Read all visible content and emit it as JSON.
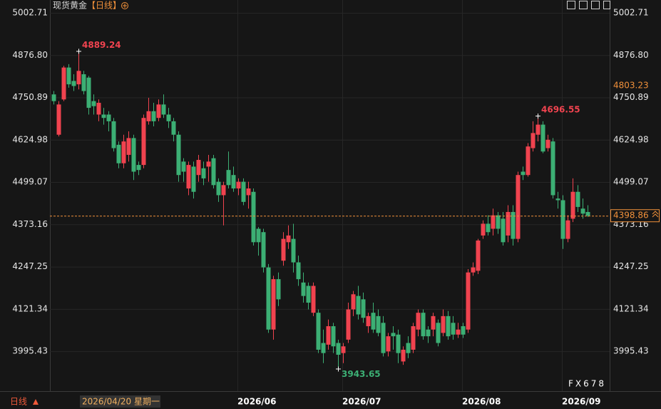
{
  "chart_data": {
    "type": "candlestick",
    "title": "现货黄金",
    "title_tag": "【日线】",
    "interval": "日线",
    "crosshair_label": "2026/04/20 星期一",
    "watermark": "FX678",
    "reference_price": 4803.23,
    "up_color": "#f0434f",
    "down_color": "#3caf74",
    "ylim": [
      3883,
      5041
    ],
    "yticks": [
      5002.71,
      {
        "value": 4876.8,
        "label": "4876.80"
      },
      4750.89,
      4624.98,
      4499.07,
      4373.16,
      4247.25,
      4121.34,
      3995.43
    ],
    "grid": true,
    "categories": [
      null,
      null,
      null,
      null,
      null,
      null,
      null,
      null,
      null,
      null,
      null,
      null,
      null,
      null,
      null,
      null,
      null,
      null,
      null,
      null,
      null,
      null,
      null,
      null,
      null,
      null,
      null,
      null,
      null,
      null,
      null,
      null,
      null,
      null,
      null,
      null,
      null,
      null,
      null,
      null,
      "2026/06",
      null,
      null,
      null,
      null,
      null,
      null,
      null,
      null,
      null,
      null,
      null,
      null,
      null,
      null,
      null,
      null,
      null,
      null,
      null,
      null,
      "2026/07",
      null,
      null,
      null,
      null,
      null,
      null,
      null,
      null,
      null,
      null,
      null,
      null,
      null,
      null,
      null,
      null,
      null,
      null,
      null,
      null,
      null,
      null,
      null,
      "2026/08",
      null,
      null,
      null,
      null,
      null,
      null,
      null,
      null,
      null,
      null,
      null,
      null,
      null,
      null,
      null,
      null,
      null,
      null,
      null,
      "2026/09",
      null,
      null
    ],
    "open": [
      4760,
      4640,
      4745,
      4840,
      4800,
      4790,
      4820,
      4810,
      4740,
      4700,
      4700,
      4700,
      4680,
      4610,
      4555,
      4580,
      4630,
      4550,
      4550,
      4680,
      4710,
      4690,
      4730,
      4700,
      4680,
      4640,
      4560,
      4480,
      4545,
      4520,
      4540,
      4545,
      4570,
      4500,
      4460,
      4535,
      4520,
      4480,
      4500,
      4460,
      4470,
      4360,
      4350,
      4245,
      4060,
      4210,
      4265,
      4320,
      4330,
      4260,
      4200,
      4190,
      4110,
      4110,
      4020,
      4015,
      4070,
      4020,
      3990,
      4030,
      4120,
      4160,
      4150,
      4070,
      4110,
      4100,
      4080,
      3995,
      4050,
      4045,
      3965,
      4020,
      4000,
      4060,
      4110,
      4060,
      4060,
      4080,
      4050,
      4100,
      4080,
      4045,
      4070,
      4060,
      4230,
      4235,
      4340,
      4375,
      4360,
      4400,
      4390,
      4340,
      4410,
      4330,
      4530,
      4520,
      4600,
      4640,
      4670,
      4600,
      4620,
      4450,
      4445,
      4330,
      4390,
      4470,
      4420,
      4410
    ],
    "close": [
      4740,
      4730,
      4840,
      4790,
      4785,
      4830,
      4770,
      4720,
      4725,
      4735,
      4690,
      4680,
      4600,
      4555,
      4620,
      4630,
      4530,
      4535,
      4690,
      4710,
      4680,
      4730,
      4700,
      4680,
      4640,
      4520,
      4530,
      4550,
      4470,
      4565,
      4510,
      4560,
      4490,
      4460,
      4490,
      4490,
      4480,
      4500,
      4440,
      4480,
      4320,
      4320,
      4245,
      4060,
      4210,
      4150,
      4330,
      4340,
      4260,
      4210,
      4160,
      4140,
      4190,
      4000,
      3990,
      4070,
      4010,
      3985,
      4010,
      4120,
      4165,
      4105,
      4095,
      4100,
      4060,
      4050,
      3990,
      4040,
      4040,
      3990,
      4000,
      3990,
      4070,
      4110,
      4040,
      4040,
      4100,
      4020,
      4100,
      4040,
      4045,
      4060,
      4045,
      4230,
      4245,
      4325,
      4375,
      4350,
      4400,
      4360,
      4320,
      4410,
      4330,
      4520,
      4520,
      4605,
      4645,
      4670,
      4590,
      4625,
      4460,
      4445,
      4330,
      4385,
      4470,
      4425,
      4405,
      4398.86
    ],
    "high": [
      4770,
      4740,
      4845,
      4850,
      4820,
      4889.24,
      4830,
      4815,
      4760,
      4745,
      4720,
      4710,
      4690,
      4620,
      4640,
      4650,
      4640,
      4560,
      4700,
      4750,
      4735,
      4745,
      4760,
      4720,
      4690,
      4650,
      4570,
      4560,
      4560,
      4580,
      4560,
      4580,
      4580,
      4510,
      4500,
      4590,
      4545,
      4510,
      4510,
      4500,
      4480,
      4365,
      4360,
      4255,
      4220,
      4230,
      4350,
      4370,
      4375,
      4280,
      4230,
      4200,
      4200,
      4120,
      4060,
      4090,
      4080,
      4030,
      4020,
      4140,
      4175,
      4190,
      4170,
      4110,
      4140,
      4120,
      4100,
      4050,
      4070,
      4060,
      4010,
      4040,
      4080,
      4120,
      4120,
      4070,
      4110,
      4090,
      4120,
      4115,
      4100,
      4080,
      4080,
      4240,
      4260,
      4330,
      4385,
      4400,
      4420,
      4410,
      4410,
      4430,
      4430,
      4530,
      4545,
      4615,
      4680,
      4696.55,
      4680,
      4640,
      4630,
      4470,
      4460,
      4400,
      4510,
      4490,
      4450,
      4430
    ],
    "low": [
      4730,
      4635,
      4740,
      4780,
      4770,
      4775,
      4760,
      4700,
      4700,
      4680,
      4670,
      4650,
      4590,
      4540,
      4540,
      4560,
      4505,
      4520,
      4540,
      4670,
      4665,
      4680,
      4690,
      4660,
      4620,
      4500,
      4500,
      4460,
      4450,
      4500,
      4490,
      4500,
      4480,
      4440,
      4370,
      4480,
      4470,
      4460,
      4430,
      4420,
      4310,
      4280,
      4230,
      4050,
      4030,
      4130,
      4250,
      4300,
      4230,
      4190,
      4140,
      4120,
      4100,
      3990,
      3960,
      4000,
      3990,
      3943.65,
      3960,
      4020,
      4100,
      4090,
      4080,
      4050,
      4050,
      4040,
      3980,
      3980,
      4000,
      3960,
      3955,
      3975,
      3990,
      4040,
      4030,
      4020,
      4040,
      4010,
      4040,
      4030,
      4030,
      4035,
      4035,
      4050,
      4220,
      4225,
      4330,
      4340,
      4340,
      4345,
      4310,
      4320,
      4310,
      4320,
      4505,
      4515,
      4590,
      4620,
      4585,
      4590,
      4450,
      4420,
      4300,
      4320,
      4380,
      4410,
      4390,
      4395
    ]
  }
}
